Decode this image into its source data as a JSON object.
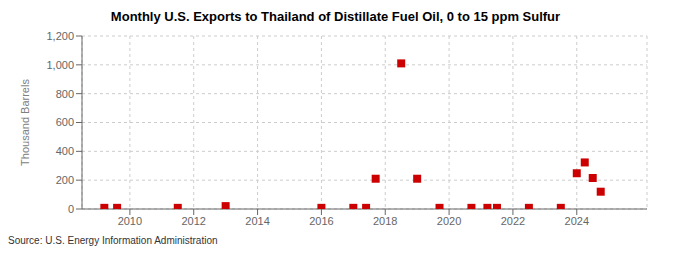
{
  "chart_data": {
    "type": "scatter",
    "title": "Monthly U.S. Exports to Thailand of Distillate Fuel Oil, 0 to 15 ppm Sulfur",
    "ylabel": "Thousand Barrels",
    "source": "Source: U.S. Energy Information Administration",
    "color": "#cc0000",
    "marker": "square",
    "grid": true,
    "xlim": [
      2008.5,
      2026.2
    ],
    "ylim": [
      0,
      1200
    ],
    "xticks": [
      2010,
      2012,
      2014,
      2016,
      2018,
      2020,
      2022,
      2024
    ],
    "yticks": [
      0,
      200,
      400,
      600,
      800,
      {
        "value": 1000,
        "label": "1,000"
      },
      {
        "value": 1200,
        "label": "1,200"
      }
    ],
    "x": [
      2009.2,
      2009.6,
      2011.5,
      2013.0,
      2016.0,
      2017.0,
      2017.4,
      2017.7,
      2018.5,
      2019.0,
      2019.7,
      2020.7,
      2021.2,
      2021.5,
      2022.5,
      2023.5,
      2024.0,
      2024.25,
      2024.5,
      2024.75
    ],
    "values": [
      8,
      8,
      8,
      20,
      8,
      8,
      8,
      210,
      1010,
      210,
      8,
      8,
      8,
      8,
      8,
      8,
      248,
      323,
      215,
      120
    ]
  }
}
